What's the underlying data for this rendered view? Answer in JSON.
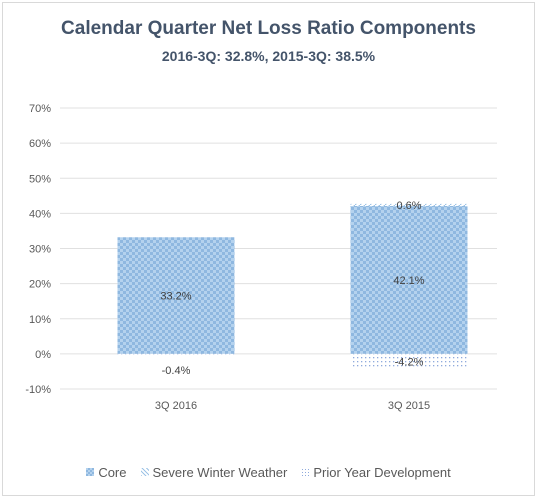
{
  "chart_data": {
    "type": "bar",
    "stacked": true,
    "title": "Calendar Quarter Net Loss Ratio Components",
    "subtitle": "2016-3Q: 32.8%, 2015-3Q: 38.5%",
    "categories": [
      "3Q 2016",
      "3Q 2015"
    ],
    "series": [
      {
        "name": "Core",
        "values": [
          33.2,
          42.1
        ],
        "labels": [
          "33.2%",
          "42.1%"
        ],
        "color": "#9dc3e6",
        "pattern": "checker"
      },
      {
        "name": "Severe Winter Weather",
        "values": [
          0,
          0.6
        ],
        "labels": [
          "",
          "0.6%"
        ],
        "color": "#bdd7ee",
        "pattern": "diagonal"
      },
      {
        "name": "Prior Year Development",
        "values": [
          -0.4,
          -4.2
        ],
        "labels": [
          "-0.4%",
          "-4.2%"
        ],
        "color": "#d6dce4",
        "pattern": "dots"
      }
    ],
    "ylim": [
      -10,
      70
    ],
    "yticks": [
      -10,
      0,
      10,
      20,
      30,
      40,
      50,
      60,
      70
    ],
    "ytick_labels": [
      "-10%",
      "0%",
      "10%",
      "20%",
      "30%",
      "40%",
      "50%",
      "60%",
      "70%"
    ],
    "grid": true,
    "legend_position": "bottom",
    "xlabel": "",
    "ylabel": ""
  }
}
